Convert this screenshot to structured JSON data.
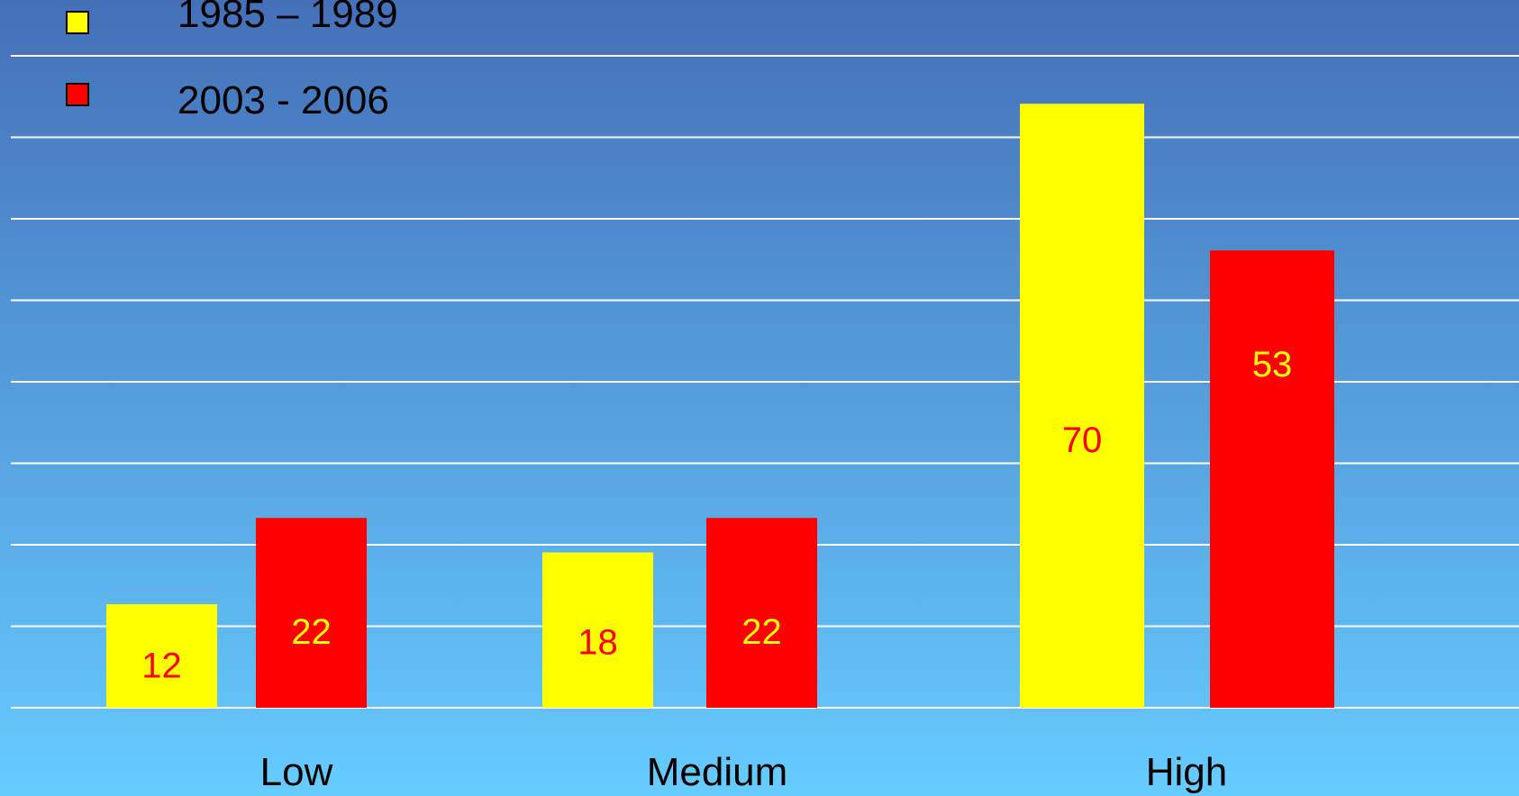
{
  "chart_data": {
    "type": "bar",
    "title": "",
    "xlabel": "",
    "ylabel": "",
    "categories": [
      "Low",
      "Medium",
      "High"
    ],
    "series": [
      {
        "name": "1985 – 1989",
        "values": [
          12,
          18,
          70
        ],
        "data_labels": [
          "12",
          "18",
          "70"
        ],
        "color": "#FFFF00",
        "label_color": "#FF0000"
      },
      {
        "name": "2003 - 2006",
        "values": [
          22,
          22,
          53
        ],
        "data_labels": [
          "22",
          "22",
          "53"
        ],
        "color": "#FF0000",
        "label_color": "#FFFF00"
      }
    ],
    "ylim": [
      0,
      85
    ],
    "grid": true,
    "legend_position": "top-left",
    "colors": {
      "background_top": "#4470B8",
      "background_bottom": "#66CCFF",
      "gridline": "#FFFFFF",
      "axis_text": "#000000"
    }
  }
}
